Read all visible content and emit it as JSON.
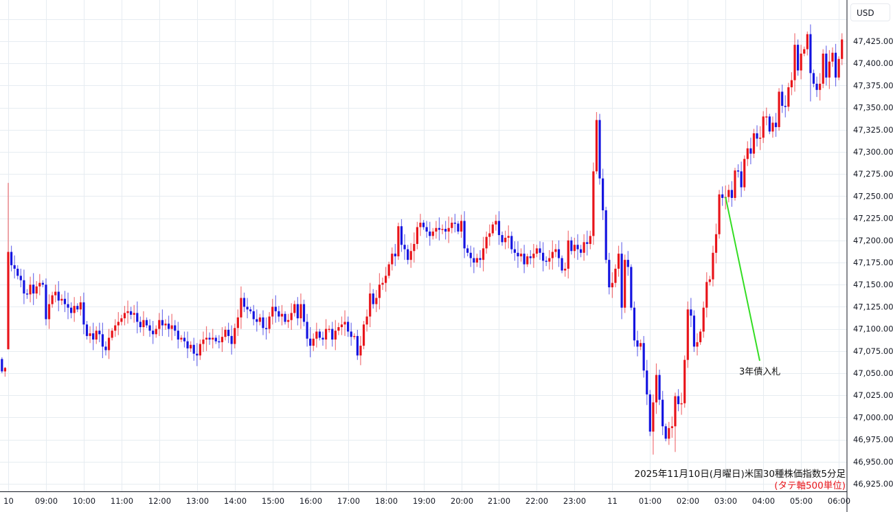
{
  "currency_button": "USD",
  "chart_data": {
    "type": "candlestick",
    "title": "2025年11月10日(月曜日)米国30種株価指数5分足",
    "subtitle": "(タテ軸500単位)",
    "interval": "5分",
    "colors": {
      "up": "#e8141a",
      "down": "#1414e0",
      "annotation_line": "#33dd22",
      "grid": "#e6ecf1"
    },
    "grid": true,
    "ylim": [
      46910,
      47465
    ],
    "y_ticks": [
      "47,425.00",
      "47,400.00",
      "47,375.00",
      "47,350.00",
      "47,325.00",
      "47,300.00",
      "47,275.00",
      "47,250.00",
      "47,225.00",
      "47,200.00",
      "47,175.00",
      "47,150.00",
      "47,125.00",
      "47,100.00",
      "47,075.00",
      "47,050.00",
      "47,025.00",
      "47,000.00",
      "46,975.00",
      "46,950.00",
      "46,925.00"
    ],
    "x_ticks": [
      "10",
      "09:00",
      "10:00",
      "11:00",
      "12:00",
      "13:00",
      "14:00",
      "15:00",
      "16:00",
      "17:00",
      "18:00",
      "19:00",
      "20:00",
      "21:00",
      "22:00",
      "23:00",
      "11",
      "01:00",
      "02:00",
      "03:00",
      "04:00",
      "05:00",
      "06:00"
    ],
    "previous_session": [
      {
        "open": 47066,
        "high": 47068,
        "low": 47050,
        "close": 47052
      },
      {
        "open": 47052,
        "high": 47057,
        "low": 47046,
        "close": 47056
      }
    ],
    "first_open": 47077,
    "hours": [
      {
        "hour": "08:00",
        "close": [
          47187,
          47172,
          47168,
          47160,
          47155,
          47140,
          47139,
          47150,
          47140,
          47148,
          47152,
          47150
        ]
      },
      {
        "hour": "09:00",
        "close": [
          47111,
          47128,
          47138,
          47142,
          47132,
          47134,
          47128,
          47124,
          47118,
          47126,
          47122,
          47130
        ]
      },
      {
        "hour": "10:00",
        "close": [
          47105,
          47092,
          47095,
          47088,
          47098,
          47094,
          47080,
          47076,
          47090,
          47098,
          47104,
          47108
        ]
      },
      {
        "hour": "11:00",
        "close": [
          47112,
          47118,
          47120,
          47116,
          47118,
          47108,
          47102,
          47110,
          47104,
          47098,
          47094,
          47100
        ]
      },
      {
        "hour": "12:00",
        "close": [
          47110,
          47104,
          47106,
          47100,
          47104,
          47098,
          47088,
          47090,
          47086,
          47078,
          47082,
          47072
        ]
      },
      {
        "hour": "13:00",
        "close": [
          47070,
          47083,
          47088,
          47090,
          47088,
          47090,
          47086,
          47085,
          47091,
          47099,
          47092,
          47083
        ]
      },
      {
        "hour": "14:00",
        "close": [
          47101,
          47113,
          47135,
          47125,
          47122,
          47120,
          47111,
          47108,
          47113,
          47101,
          47100,
          47114
        ]
      },
      {
        "hour": "15:00",
        "close": [
          47125,
          47120,
          47114,
          47117,
          47108,
          47110,
          47118,
          47128,
          47112,
          47128,
          47108,
          47089
        ]
      },
      {
        "hour": "16:00",
        "close": [
          47081,
          47089,
          47097,
          47090,
          47088,
          47100,
          47100,
          47088,
          47098,
          47102,
          47105,
          47108
        ]
      },
      {
        "hour": "17:00",
        "close": [
          47097,
          47091,
          47092,
          47070,
          47081,
          47105,
          47114,
          47140,
          47128,
          47135,
          47150,
          47152
        ]
      },
      {
        "hour": "18:00",
        "close": [
          47160,
          47173,
          47185,
          47182,
          47216,
          47195,
          47190,
          47178,
          47188,
          47196,
          47215,
          47220
        ]
      },
      {
        "hour": "19:00",
        "close": [
          47215,
          47210,
          47205,
          47210,
          47214,
          47212,
          47213,
          47210,
          47214,
          47220,
          47219,
          47210
        ]
      },
      {
        "hour": "20:00",
        "close": [
          47222,
          47191,
          47186,
          47180,
          47175,
          47180,
          47178,
          47191,
          47204,
          47208,
          47218,
          47222
        ]
      },
      {
        "hour": "21:00",
        "close": [
          47206,
          47198,
          47203,
          47205,
          47190,
          47186,
          47182,
          47185,
          47173,
          47182,
          47180,
          47185
        ]
      },
      {
        "hour": "22:00",
        "close": [
          47191,
          47186,
          47177,
          47176,
          47180,
          47187,
          47190,
          47180,
          47166,
          47168,
          47200,
          47188
        ]
      },
      {
        "hour": "23:00",
        "close": [
          47195,
          47190,
          47186,
          47198,
          47196,
          47205,
          47278,
          47336,
          47270,
          47234,
          47178,
          47147
        ]
      },
      {
        "hour": "00:00",
        "close": [
          47152,
          47168,
          47185,
          47124,
          47178,
          47170,
          47124,
          47087,
          47080,
          47084,
          47053,
          47026
        ]
      },
      {
        "hour": "01:00",
        "close": [
          46984,
          47017,
          47048,
          47020,
          46990,
          46976,
          46988,
          46990,
          47024,
          47015,
          47016,
          47065
        ]
      },
      {
        "hour": "02:00",
        "close": [
          47122,
          47115,
          47080,
          47085,
          47097,
          47124,
          47153,
          47156,
          47186,
          47207,
          47252,
          47248
        ]
      },
      {
        "hour": "03:00",
        "close": [
          47249,
          47257,
          47248,
          47279,
          47278,
          47260,
          47292,
          47304,
          47298,
          47321,
          47315,
          47316
        ]
      },
      {
        "hour": "04:00",
        "close": [
          47340,
          47340,
          47323,
          47333,
          47328,
          47368,
          47352,
          47351,
          47373,
          47381,
          47421,
          47392
        ]
      },
      {
        "hour": "05:00",
        "close": [
          47411,
          47416,
          47433,
          47389,
          47377,
          47370,
          47377,
          47411,
          47384,
          47402,
          47412,
          47384
        ]
      },
      {
        "hour": "06:00",
        "close": [
          47405,
          47427
        ]
      }
    ],
    "extremes": [
      {
        "time": "08:00",
        "high": 47265,
        "low": 47077
      },
      {
        "time": "17:15",
        "low": 47065
      },
      {
        "time": "20:15",
        "low": 47170
      },
      {
        "time": "23:35",
        "high": 47345
      },
      {
        "time": "01:05",
        "low": 46958
      },
      {
        "time": "01:40",
        "low": 46961
      },
      {
        "time": "05:10",
        "high": 47436
      },
      {
        "time": "05:15",
        "low": 47357
      }
    ],
    "annotations": [
      {
        "text": "3年債入札",
        "time": "03:00",
        "price": 47249
      }
    ]
  }
}
